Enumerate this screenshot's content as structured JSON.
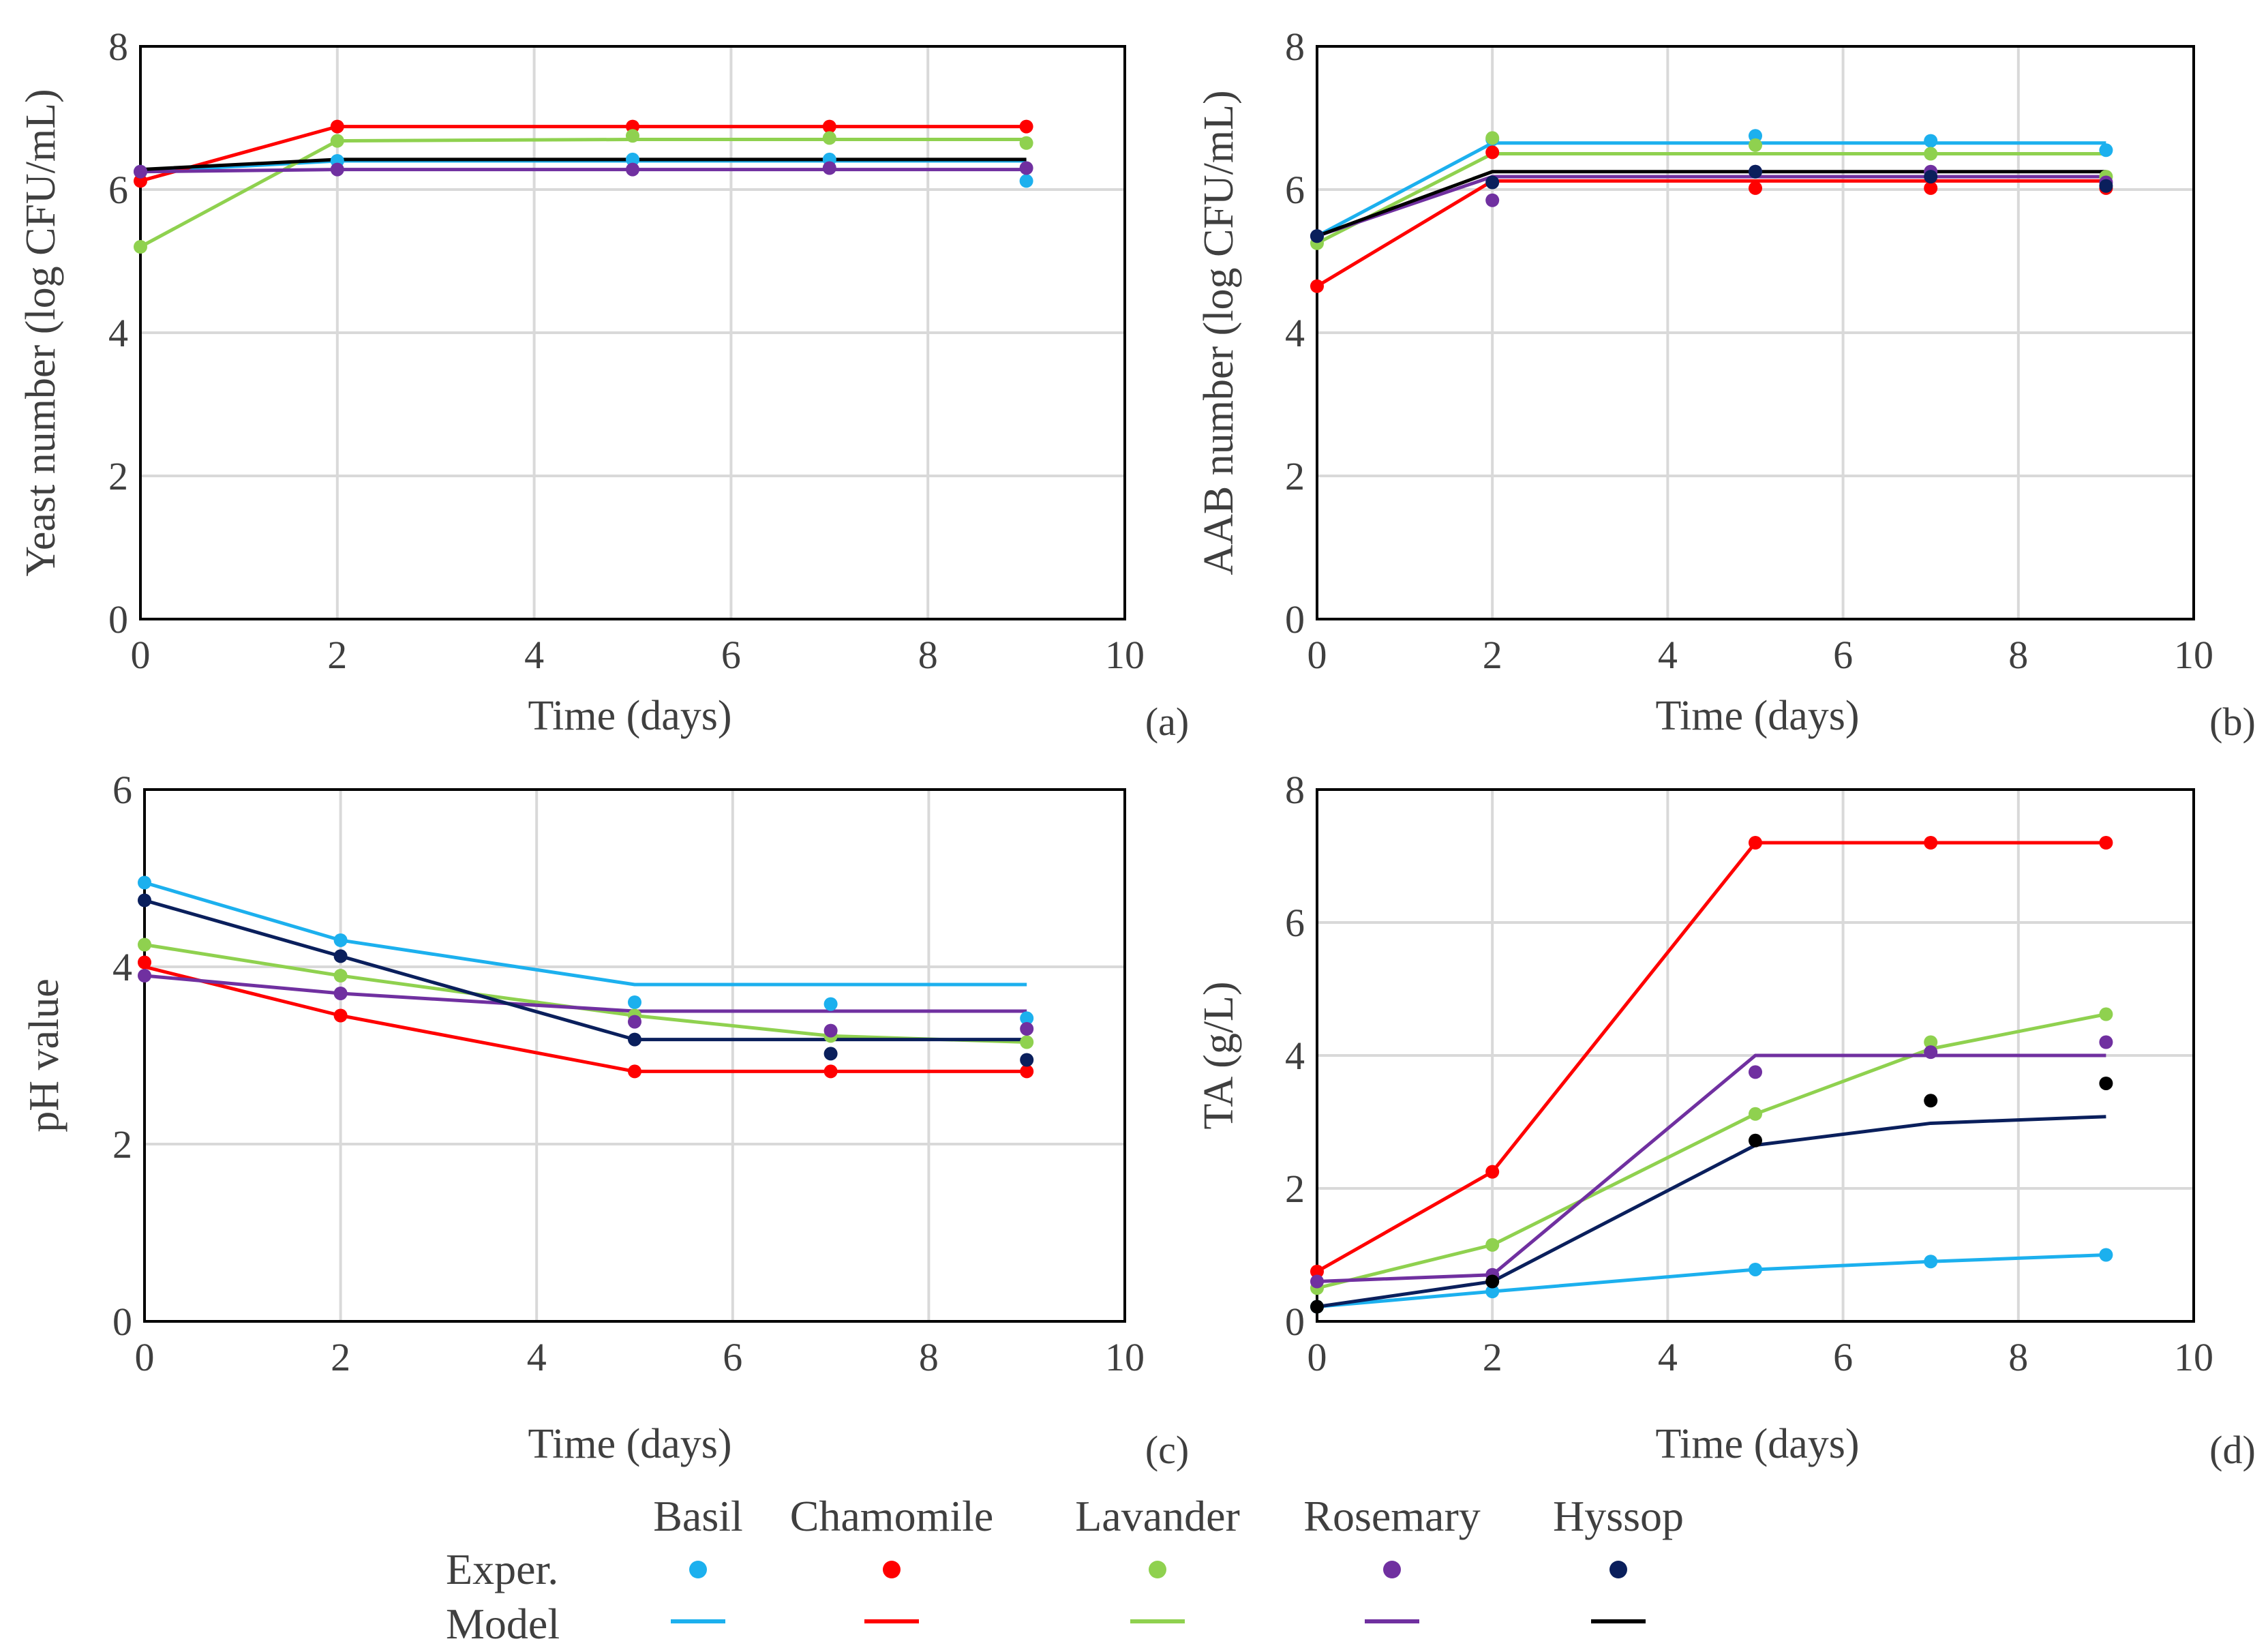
{
  "legend": {
    "names": [
      "Basil",
      "Chamomile",
      "Lavander",
      "Rosemary",
      "Hyssop"
    ],
    "exp_label": "Exper.",
    "model_label": "Model",
    "exp_colors": [
      "#1cb0ee",
      "#ff0000",
      "#8fd14f",
      "#7030a0",
      "#0a1f5c"
    ],
    "model_colors": [
      "#1cb0ee",
      "#ff0000",
      "#8fd14f",
      "#7030a0",
      "#000000"
    ]
  },
  "chart_data": [
    {
      "type": "line",
      "panel": "(a)",
      "xlabel": "Time (days)",
      "ylabel": "Yeast number  (log CFU/mL)",
      "xlim": [
        0,
        10
      ],
      "ylim": [
        0,
        8
      ],
      "xticks": [
        0,
        2,
        4,
        6,
        8,
        10
      ],
      "yticks": [
        0,
        2,
        4,
        6,
        8
      ],
      "grid": true,
      "series": [
        {
          "name": "Basil",
          "exp_color": "#1cb0ee",
          "model_color": "#1cb0ee",
          "exp_x": [
            0,
            2,
            5,
            7,
            9
          ],
          "exp_y": [
            6.25,
            6.4,
            6.42,
            6.42,
            6.12
          ],
          "model_x": [
            0,
            2,
            5,
            7,
            9
          ],
          "model_y": [
            6.25,
            6.4,
            6.4,
            6.4,
            6.4
          ]
        },
        {
          "name": "Chamomile",
          "exp_color": "#ff0000",
          "model_color": "#ff0000",
          "exp_x": [
            0,
            2,
            5,
            7,
            9
          ],
          "exp_y": [
            6.12,
            6.88,
            6.88,
            6.88,
            6.88
          ],
          "model_x": [
            0,
            2,
            5,
            7,
            9
          ],
          "model_y": [
            6.12,
            6.88,
            6.88,
            6.88,
            6.88
          ]
        },
        {
          "name": "Lavander",
          "exp_color": "#8fd14f",
          "model_color": "#8fd14f",
          "exp_x": [
            0,
            2,
            5,
            7,
            9
          ],
          "exp_y": [
            5.2,
            6.68,
            6.75,
            6.72,
            6.65
          ],
          "model_x": [
            0,
            2,
            5,
            7,
            9
          ],
          "model_y": [
            5.2,
            6.68,
            6.7,
            6.7,
            6.7
          ]
        },
        {
          "name": "Rosemary",
          "exp_color": "#7030a0",
          "model_color": "#7030a0",
          "exp_x": [
            0,
            2,
            5,
            7,
            9
          ],
          "exp_y": [
            6.25,
            6.28,
            6.28,
            6.3,
            6.3
          ],
          "model_x": [
            0,
            2,
            5,
            7,
            9
          ],
          "model_y": [
            6.25,
            6.28,
            6.28,
            6.28,
            6.28
          ]
        },
        {
          "name": "Hyssop",
          "exp_color": "#0a1f5c",
          "model_color": "#000000",
          "exp_x": [],
          "exp_y": [],
          "model_x": [
            0,
            2,
            5,
            7,
            9
          ],
          "model_y": [
            6.28,
            6.42,
            6.42,
            6.42,
            6.42
          ]
        }
      ]
    },
    {
      "type": "line",
      "panel": "(b)",
      "xlabel": "Time (days)",
      "ylabel": "AAB number (log CFU/mL)",
      "xlim": [
        0,
        10
      ],
      "ylim": [
        0,
        8
      ],
      "xticks": [
        0,
        2,
        4,
        6,
        8,
        10
      ],
      "yticks": [
        0,
        2,
        4,
        6,
        8
      ],
      "grid": true,
      "series": [
        {
          "name": "Basil",
          "exp_color": "#1cb0ee",
          "model_color": "#1cb0ee",
          "exp_x": [
            0,
            2,
            5,
            7,
            9
          ],
          "exp_y": [
            5.35,
            6.7,
            6.75,
            6.68,
            6.55
          ],
          "model_x": [
            0,
            2,
            5,
            7,
            9
          ],
          "model_y": [
            5.35,
            6.65,
            6.65,
            6.65,
            6.65
          ]
        },
        {
          "name": "Chamomile",
          "exp_color": "#ff0000",
          "model_color": "#ff0000",
          "exp_x": [
            0,
            2,
            5,
            7,
            9
          ],
          "exp_y": [
            4.65,
            6.52,
            6.02,
            6.02,
            6.02
          ],
          "model_x": [
            0,
            2,
            5,
            7,
            9
          ],
          "model_y": [
            4.65,
            6.12,
            6.12,
            6.12,
            6.12
          ]
        },
        {
          "name": "Lavander",
          "exp_color": "#8fd14f",
          "model_color": "#8fd14f",
          "exp_x": [
            0,
            2,
            5,
            7,
            9
          ],
          "exp_y": [
            5.25,
            6.72,
            6.62,
            6.5,
            6.18
          ],
          "model_x": [
            0,
            2,
            5,
            7,
            9
          ],
          "model_y": [
            5.25,
            6.5,
            6.5,
            6.5,
            6.5
          ]
        },
        {
          "name": "Rosemary",
          "exp_color": "#7030a0",
          "model_color": "#7030a0",
          "exp_x": [
            0,
            2,
            5,
            7,
            9
          ],
          "exp_y": [
            5.35,
            5.85,
            6.25,
            6.25,
            6.1
          ],
          "model_x": [
            0,
            2,
            5,
            7,
            9
          ],
          "model_y": [
            5.35,
            6.18,
            6.18,
            6.18,
            6.18
          ]
        },
        {
          "name": "Hyssop",
          "exp_color": "#0a1f5c",
          "model_color": "#000000",
          "exp_x": [
            0,
            2,
            5,
            7,
            9
          ],
          "exp_y": [
            5.35,
            6.1,
            6.25,
            6.18,
            6.05
          ],
          "model_x": [
            0,
            2,
            5,
            7,
            9
          ],
          "model_y": [
            5.35,
            6.25,
            6.25,
            6.25,
            6.25
          ]
        }
      ]
    },
    {
      "type": "line",
      "panel": "(c)",
      "xlabel": "Time (days)",
      "ylabel": "pH value",
      "xlim": [
        0,
        10
      ],
      "ylim": [
        0,
        6
      ],
      "xticks": [
        0,
        2,
        4,
        6,
        8,
        10
      ],
      "yticks": [
        0,
        2,
        4,
        6
      ],
      "grid": true,
      "series": [
        {
          "name": "Basil",
          "exp_color": "#1cb0ee",
          "model_color": "#1cb0ee",
          "exp_x": [
            0,
            2,
            5,
            7,
            9
          ],
          "exp_y": [
            4.95,
            4.3,
            3.6,
            3.58,
            3.42
          ],
          "model_x": [
            0,
            2,
            5,
            7,
            9
          ],
          "model_y": [
            4.95,
            4.3,
            3.8,
            3.8,
            3.8
          ]
        },
        {
          "name": "Chamomile",
          "exp_color": "#ff0000",
          "model_color": "#ff0000",
          "exp_x": [
            0,
            2,
            5,
            7,
            9
          ],
          "exp_y": [
            4.05,
            3.45,
            2.82,
            2.82,
            2.82
          ],
          "model_x": [
            0,
            2,
            5,
            7,
            9
          ],
          "model_y": [
            4.0,
            3.45,
            2.82,
            2.82,
            2.82
          ]
        },
        {
          "name": "Lavander",
          "exp_color": "#8fd14f",
          "model_color": "#8fd14f",
          "exp_x": [
            0,
            2,
            5,
            7,
            9
          ],
          "exp_y": [
            4.25,
            3.9,
            3.45,
            3.22,
            3.15
          ],
          "model_x": [
            0,
            2,
            5,
            7,
            9
          ],
          "model_y": [
            4.25,
            3.9,
            3.45,
            3.22,
            3.15
          ]
        },
        {
          "name": "Rosemary",
          "exp_color": "#7030a0",
          "model_color": "#7030a0",
          "exp_x": [
            0,
            2,
            5,
            7,
            9
          ],
          "exp_y": [
            3.9,
            3.7,
            3.38,
            3.28,
            3.3
          ],
          "model_x": [
            0,
            2,
            5,
            7,
            9
          ],
          "model_y": [
            3.9,
            3.7,
            3.5,
            3.5,
            3.5
          ]
        },
        {
          "name": "Hyssop",
          "exp_color": "#0a1f5c",
          "model_color": "#0a1f5c",
          "exp_x": [
            0,
            2,
            5,
            7,
            9
          ],
          "exp_y": [
            4.75,
            4.12,
            3.18,
            3.02,
            2.95
          ],
          "model_x": [
            0,
            2,
            5,
            7,
            9
          ],
          "model_y": [
            4.75,
            4.12,
            3.18,
            3.18,
            3.18
          ]
        }
      ]
    },
    {
      "type": "line",
      "panel": "(d)",
      "xlabel": "Time (days)",
      "ylabel": "TA (g/L)",
      "xlim": [
        0,
        10
      ],
      "ylim": [
        0,
        8
      ],
      "xticks": [
        0,
        2,
        4,
        6,
        8,
        10
      ],
      "yticks": [
        0,
        2,
        4,
        6,
        8
      ],
      "grid": true,
      "series": [
        {
          "name": "Basil",
          "exp_color": "#1cb0ee",
          "model_color": "#1cb0ee",
          "exp_x": [
            0,
            2,
            5,
            7,
            9
          ],
          "exp_y": [
            0.22,
            0.45,
            0.78,
            0.9,
            1.0
          ],
          "model_x": [
            0,
            2,
            5,
            7,
            9
          ],
          "model_y": [
            0.22,
            0.45,
            0.78,
            0.9,
            1.0
          ]
        },
        {
          "name": "Chamomile",
          "exp_color": "#ff0000",
          "model_color": "#ff0000",
          "exp_x": [
            0,
            2,
            5,
            7,
            9
          ],
          "exp_y": [
            0.75,
            2.25,
            7.2,
            7.2,
            7.2
          ],
          "model_x": [
            0,
            2,
            5,
            7,
            9
          ],
          "model_y": [
            0.75,
            2.25,
            7.2,
            7.2,
            7.2
          ]
        },
        {
          "name": "Lavander",
          "exp_color": "#8fd14f",
          "model_color": "#8fd14f",
          "exp_x": [
            0,
            2,
            5,
            7,
            9
          ],
          "exp_y": [
            0.5,
            1.15,
            3.12,
            4.2,
            4.62
          ],
          "model_x": [
            0,
            2,
            5,
            7,
            9
          ],
          "model_y": [
            0.5,
            1.15,
            3.12,
            4.1,
            4.62
          ]
        },
        {
          "name": "Rosemary",
          "exp_color": "#7030a0",
          "model_color": "#7030a0",
          "exp_x": [
            0,
            2,
            5,
            7,
            9
          ],
          "exp_y": [
            0.6,
            0.7,
            3.75,
            4.05,
            4.2
          ],
          "model_x": [
            0,
            2,
            5,
            7,
            9
          ],
          "model_y": [
            0.6,
            0.7,
            4.0,
            4.0,
            4.0
          ]
        },
        {
          "name": "Hyssop",
          "exp_color": "#000000",
          "model_color": "#0a1f5c",
          "exp_x": [
            0,
            2,
            5,
            7,
            9
          ],
          "exp_y": [
            0.22,
            0.6,
            2.72,
            3.32,
            3.58
          ],
          "model_x": [
            0,
            2,
            5,
            7,
            9
          ],
          "model_y": [
            0.22,
            0.6,
            2.65,
            2.98,
            3.08
          ]
        }
      ]
    }
  ]
}
